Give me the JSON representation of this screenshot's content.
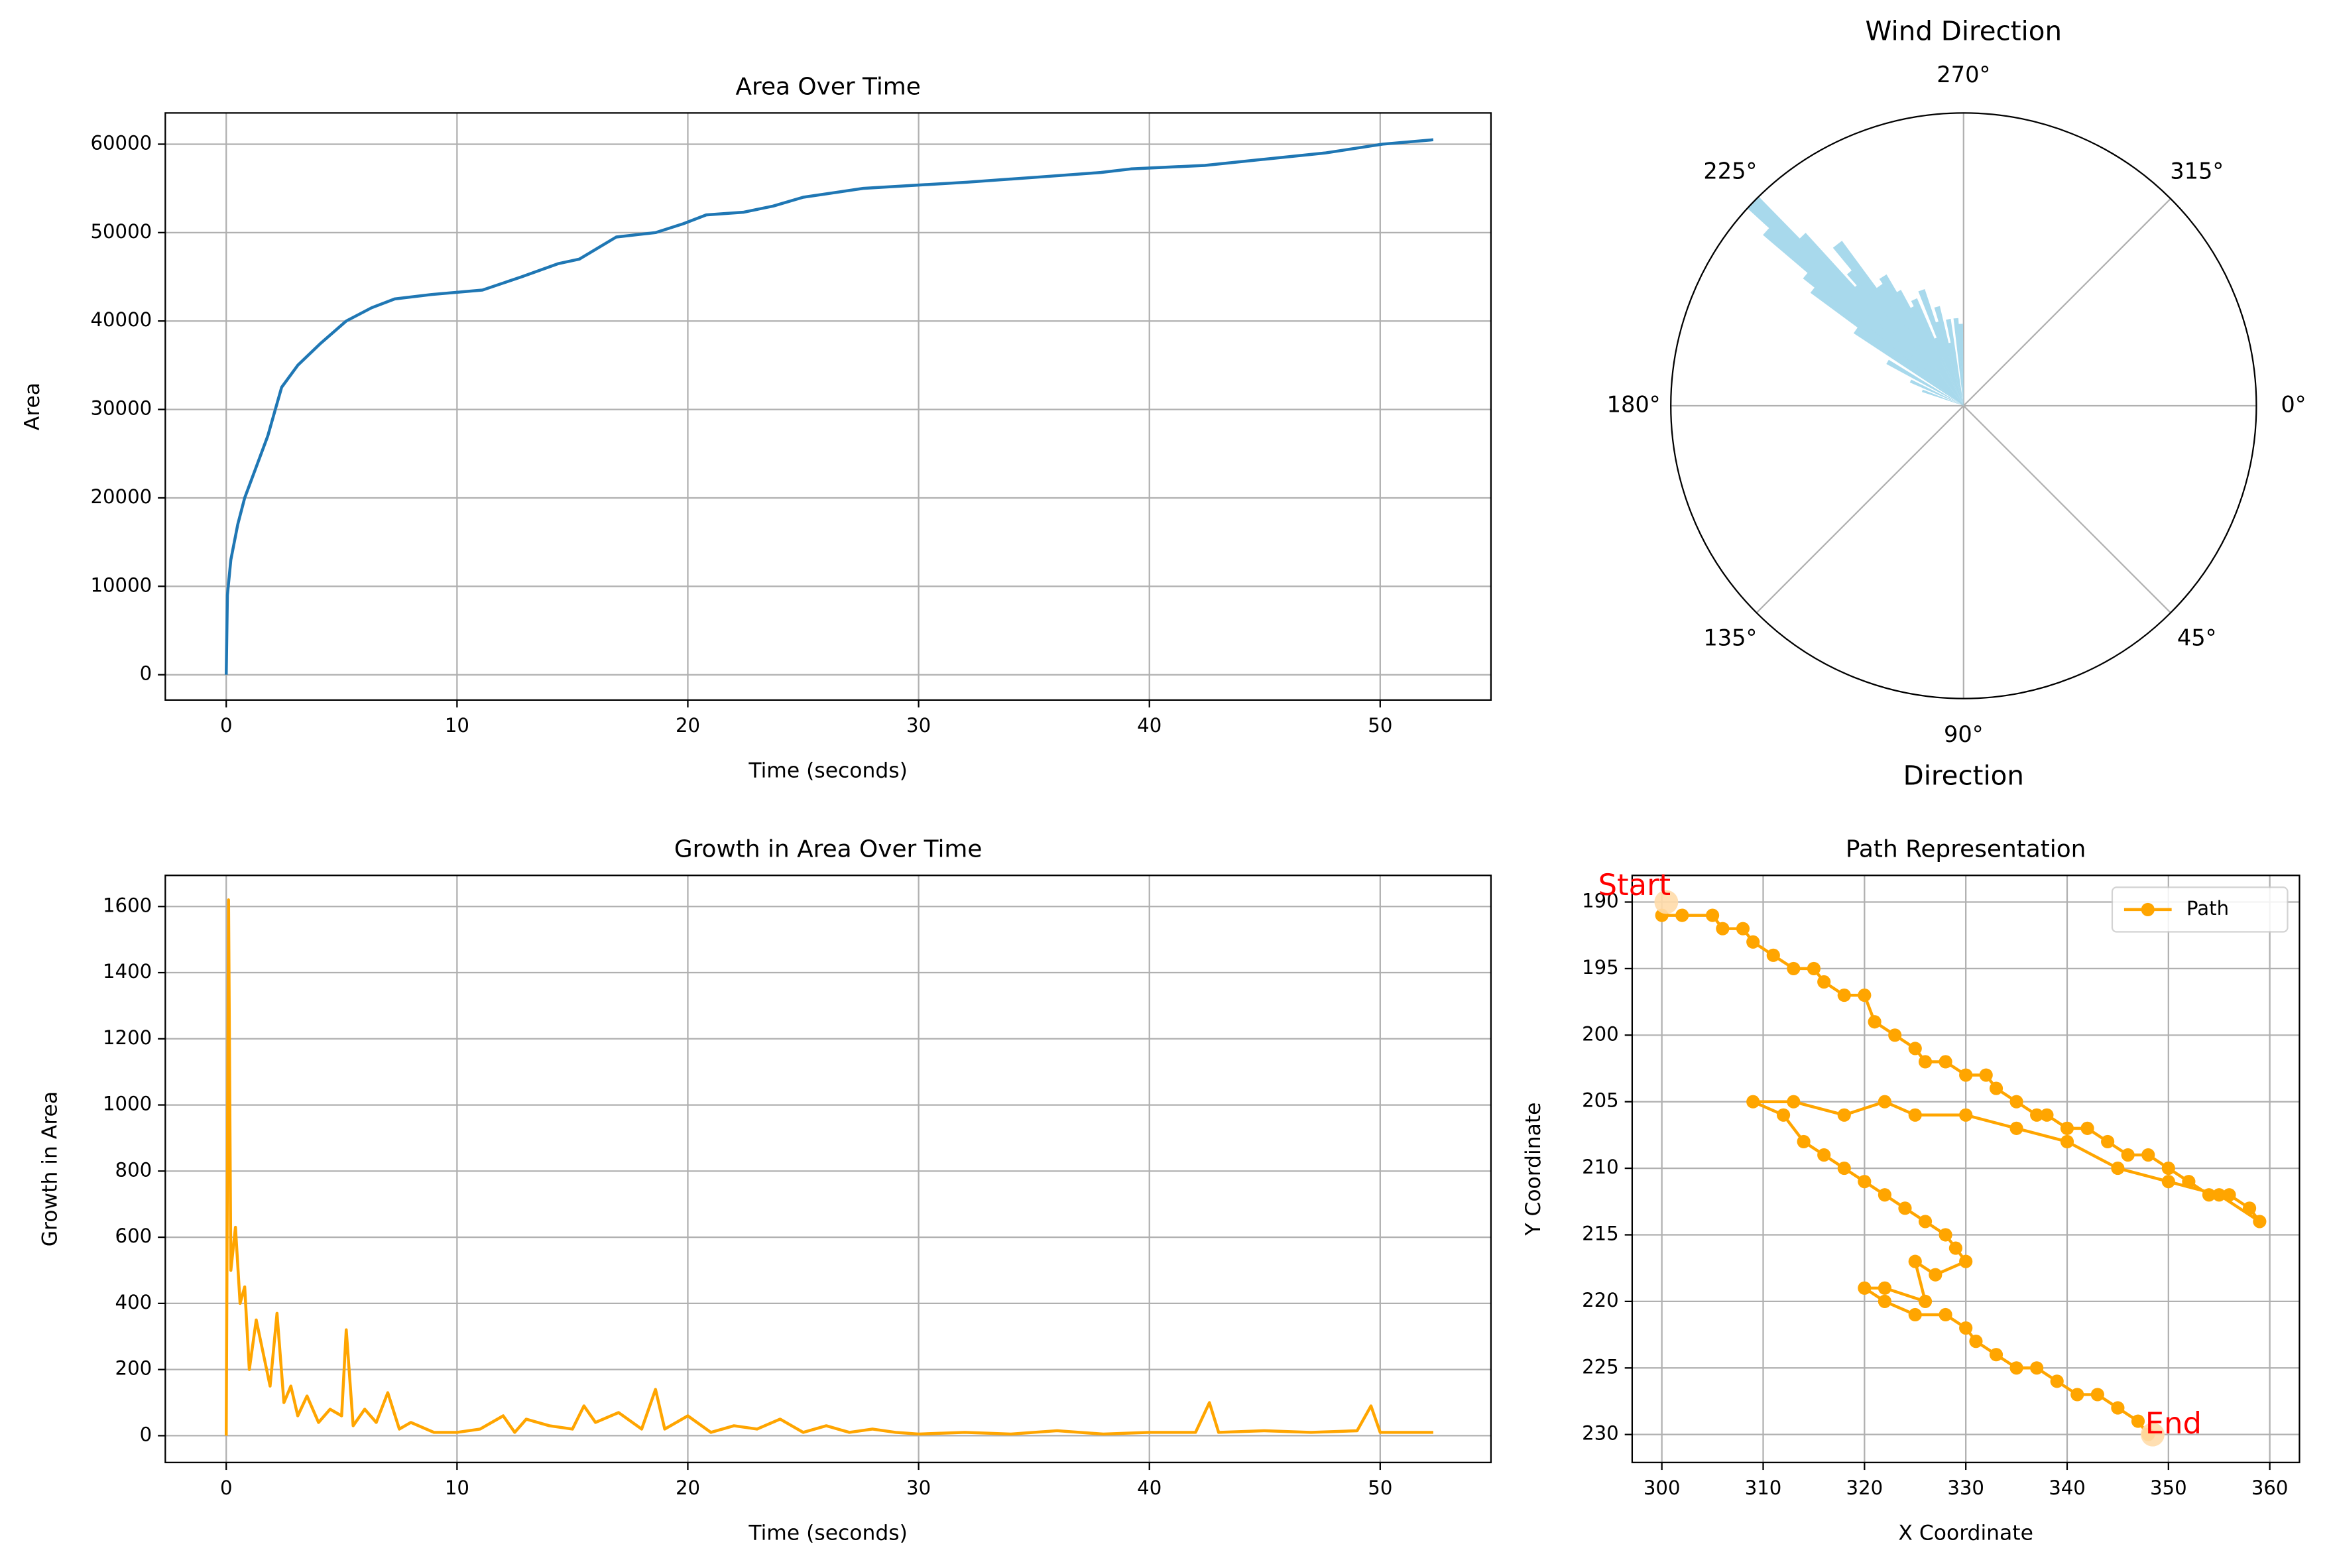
{
  "chart_data": [
    {
      "type": "line",
      "title": "Area Over Time",
      "xlabel": "Time (seconds)",
      "ylabel": "Area",
      "color": "#1f77b4",
      "grid": true,
      "x": [
        0,
        0.05,
        0.2,
        0.5,
        0.8,
        1.8,
        2.4,
        3.1,
        4.1,
        5.2,
        6.3,
        7.3,
        8.9,
        11.1,
        12.8,
        14.4,
        15.3,
        16.9,
        18.6,
        19.8,
        20.8,
        22.4,
        23.7,
        25.0,
        27.6,
        32.1,
        35.3,
        37.9,
        39.2,
        42.4,
        45.0,
        47.6,
        50.1,
        52.3
      ],
      "values": [
        0,
        9000,
        13000,
        17000,
        20000,
        27000,
        32500,
        35000,
        37500,
        40000,
        41500,
        42500,
        43000,
        43500,
        45000,
        46500,
        47000,
        49500,
        50000,
        51000,
        52000,
        52300,
        53000,
        54000,
        55000,
        55700,
        56300,
        56800,
        57200,
        57600,
        58300,
        59000,
        60000,
        60500
      ],
      "xlim": [
        -2.64,
        54.8
      ],
      "xticks": [
        0,
        10,
        20,
        30,
        40,
        50
      ],
      "ylim": [
        -2860,
        63530
      ],
      "yticks": [
        0,
        10000,
        20000,
        30000,
        40000,
        50000,
        60000
      ]
    },
    {
      "type": "line",
      "title": "Growth in Area Over Time",
      "xlabel": "Time (seconds)",
      "ylabel": "Growth in Area",
      "color": "orange",
      "grid": true,
      "x": [
        0,
        0.1,
        0.2,
        0.4,
        0.6,
        0.8,
        1.0,
        1.3,
        1.6,
        1.9,
        2.2,
        2.5,
        2.8,
        3.1,
        3.5,
        4,
        4.5,
        5,
        5.2,
        5.5,
        6,
        6.5,
        7,
        7.5,
        8,
        9,
        10,
        11,
        12,
        12.5,
        13,
        14,
        15,
        15.5,
        16,
        17,
        18,
        18.6,
        19,
        20,
        21,
        22,
        23,
        24,
        25,
        26,
        27,
        28,
        29,
        30,
        32,
        34,
        36,
        38,
        40,
        42,
        42.6,
        43,
        45,
        47,
        49,
        49.6,
        50,
        51,
        52.3
      ],
      "values": [
        0,
        1620,
        500,
        630,
        400,
        450,
        200,
        350,
        250,
        150,
        370,
        100,
        150,
        60,
        120,
        40,
        80,
        60,
        320,
        30,
        80,
        40,
        130,
        20,
        40,
        10,
        10,
        20,
        60,
        10,
        50,
        30,
        20,
        90,
        40,
        70,
        20,
        140,
        20,
        60,
        10,
        30,
        20,
        50,
        10,
        30,
        10,
        20,
        10,
        5,
        10,
        5,
        15,
        5,
        10,
        10,
        100,
        10,
        15,
        10,
        15,
        90,
        10,
        10,
        10
      ],
      "xlim": [
        -2.64,
        54.8
      ],
      "xticks": [
        0,
        10,
        20,
        30,
        40,
        50
      ],
      "ylim": [
        -81,
        1694
      ],
      "yticks": [
        0,
        200,
        400,
        600,
        800,
        1000,
        1200,
        1400,
        1600
      ]
    },
    {
      "type": "polar_bar",
      "title": "Wind Direction",
      "xlabel": "Direction",
      "color": "#a8d9ec",
      "grid": true,
      "x": [
        224,
        222,
        226,
        220,
        218,
        230,
        228,
        235,
        240,
        245,
        250,
        255,
        260,
        265,
        268,
        215,
        210,
        205,
        200,
        232,
        236,
        242,
        238,
        248,
        252,
        258
      ],
      "values": [
        100,
        90,
        80,
        70,
        65,
        60,
        55,
        50,
        45,
        40,
        42,
        35,
        30,
        30,
        28,
        45,
        30,
        20,
        15,
        70,
        48,
        38,
        52,
        25,
        30,
        22
      ],
      "rlim": [
        0,
        100
      ],
      "xticks": [
        {
          "value": 0,
          "label": "0°"
        },
        {
          "value": 45,
          "label": "45°"
        },
        {
          "value": 90,
          "label": "90°"
        },
        {
          "value": 135,
          "label": "135°"
        },
        {
          "value": 180,
          "label": "180°"
        },
        {
          "value": 225,
          "label": "225°"
        },
        {
          "value": 270,
          "label": "270°"
        },
        {
          "value": 315,
          "label": "315°"
        }
      ]
    },
    {
      "type": "line",
      "title": "Path Representation",
      "xlabel": "X Coordinate",
      "ylabel": "Y Coordinate",
      "grid": true,
      "legend": "upper right",
      "x": [
        300,
        302,
        305,
        306,
        308,
        309,
        311,
        313,
        315,
        316,
        318,
        320,
        321,
        323,
        325,
        326,
        328,
        330,
        332,
        333,
        335,
        337,
        338,
        340,
        342,
        344,
        346,
        348,
        350,
        352,
        354,
        356,
        358,
        359,
        355,
        350,
        345,
        340,
        335,
        330,
        325,
        322,
        318,
        313,
        309,
        312,
        314,
        316,
        318,
        320,
        322,
        324,
        326,
        328,
        329,
        330,
        327,
        325,
        326,
        322,
        320,
        322,
        325,
        328,
        330,
        331,
        333,
        335,
        337,
        339,
        341,
        343,
        345,
        347,
        348
      ],
      "series": [
        {
          "name": "Path",
          "color": "orange",
          "marker": "o",
          "values": [
            191,
            191,
            191,
            192,
            192,
            193,
            194,
            195,
            195,
            196,
            197,
            197,
            199,
            200,
            201,
            202,
            202,
            203,
            203,
            204,
            205,
            206,
            206,
            207,
            207,
            208,
            209,
            209,
            210,
            211,
            212,
            212,
            213,
            214,
            212,
            211,
            210,
            208,
            207,
            206,
            206,
            205,
            206,
            205,
            205,
            206,
            208,
            209,
            210,
            211,
            212,
            213,
            214,
            215,
            216,
            217,
            218,
            217,
            220,
            219,
            219,
            220,
            221,
            221,
            222,
            223,
            224,
            225,
            225,
            226,
            227,
            227,
            228,
            229,
            230
          ]
        }
      ],
      "annotations": [
        {
          "text": "Start",
          "x": 300,
          "y": 190,
          "color": "red"
        },
        {
          "text": "End",
          "x": 348,
          "y": 230,
          "color": "red"
        }
      ],
      "xlim": [
        297.07,
        362.93
      ],
      "xticks": [
        300,
        310,
        320,
        330,
        340,
        350,
        360
      ],
      "ylim": [
        232.1,
        188.0
      ],
      "yticks": [
        190,
        195,
        200,
        205,
        210,
        215,
        220,
        225,
        230
      ]
    }
  ]
}
